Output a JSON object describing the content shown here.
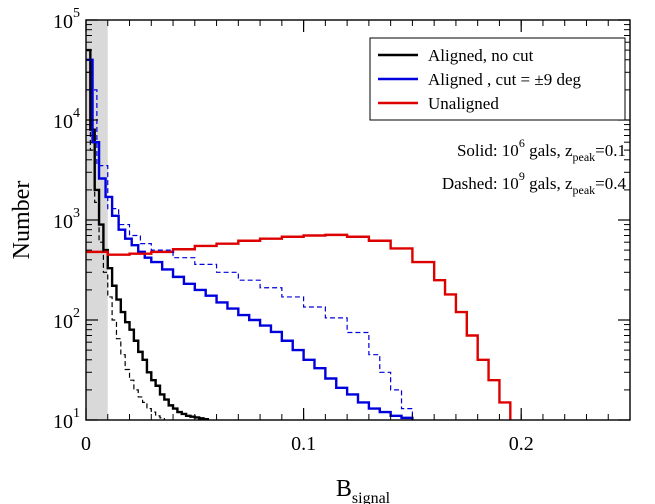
{
  "chart_data": {
    "type": "line",
    "plot_style": "step histogram",
    "xlabel": "B",
    "xlabel_sub": "signal",
    "ylabel": "Number",
    "xlim": [
      0,
      0.25
    ],
    "ylim": [
      10,
      100000
    ],
    "yscale": "log",
    "grid": false,
    "legend_position": "top-right",
    "x_ticks": [
      {
        "value": 0,
        "label": "0"
      },
      {
        "value": 0.1,
        "label": "0.1"
      },
      {
        "value": 0.2,
        "label": "0.2"
      }
    ],
    "y_ticks": [
      {
        "value": 10,
        "base": "10",
        "exp": "1"
      },
      {
        "value": 100,
        "base": "10",
        "exp": "2"
      },
      {
        "value": 1000,
        "base": "10",
        "exp": "3"
      },
      {
        "value": 10000,
        "base": "10",
        "exp": "4"
      },
      {
        "value": 100000,
        "base": "10",
        "exp": "5"
      }
    ],
    "shaded_band": {
      "x": [
        0,
        0.01
      ],
      "color": "#d9d9d9"
    },
    "annotations": [
      {
        "parts": [
          "Solid: 10",
          "6",
          " gals, z",
          "peak",
          "=0.1"
        ]
      },
      {
        "parts": [
          "Dashed: 10",
          "9",
          " gals, z",
          "peak",
          "=0.4"
        ]
      }
    ],
    "series": [
      {
        "name": "Aligned, no cut",
        "color": "#000000",
        "style": "solid",
        "x": [
          0,
          0.002,
          0.004,
          0.006,
          0.008,
          0.01,
          0.012,
          0.014,
          0.016,
          0.018,
          0.02,
          0.022,
          0.024,
          0.026,
          0.028,
          0.03,
          0.032,
          0.034,
          0.036,
          0.038,
          0.04,
          0.042,
          0.044,
          0.046,
          0.048,
          0.05,
          0.052,
          0.054,
          0.056
        ],
        "y": [
          50000,
          8000,
          2000,
          900,
          500,
          330,
          220,
          160,
          120,
          95,
          80,
          62,
          48,
          40,
          30,
          25,
          22,
          18,
          16,
          14,
          13,
          12,
          11.5,
          11,
          10.8,
          10.6,
          10.4,
          10.2,
          10
        ]
      },
      {
        "name": "Aligned , cut = ±9 deg",
        "color": "#0000dd",
        "style": "solid",
        "x": [
          0,
          0.003,
          0.006,
          0.009,
          0.012,
          0.015,
          0.018,
          0.021,
          0.024,
          0.027,
          0.03,
          0.035,
          0.04,
          0.045,
          0.05,
          0.055,
          0.06,
          0.065,
          0.07,
          0.075,
          0.08,
          0.085,
          0.09,
          0.095,
          0.1,
          0.105,
          0.11,
          0.115,
          0.12,
          0.125,
          0.13,
          0.135,
          0.14,
          0.145,
          0.15
        ],
        "y": [
          40000,
          6000,
          2600,
          1700,
          1100,
          800,
          650,
          560,
          480,
          420,
          380,
          320,
          270,
          230,
          200,
          175,
          150,
          130,
          112,
          100,
          88,
          76,
          62,
          50,
          40,
          33,
          26,
          21,
          18,
          15,
          13,
          12,
          11,
          10.5,
          10
        ]
      },
      {
        "name": "Unaligned",
        "color": "#dd0000",
        "style": "solid",
        "x": [
          0,
          0.01,
          0.02,
          0.03,
          0.04,
          0.05,
          0.06,
          0.07,
          0.08,
          0.09,
          0.1,
          0.11,
          0.12,
          0.13,
          0.14,
          0.15,
          0.16,
          0.165,
          0.17,
          0.175,
          0.18,
          0.185,
          0.19,
          0.195
        ],
        "y": [
          480,
          450,
          460,
          480,
          510,
          550,
          580,
          620,
          650,
          680,
          700,
          710,
          680,
          620,
          520,
          380,
          250,
          180,
          120,
          70,
          40,
          25,
          15,
          10
        ]
      },
      {
        "name": "",
        "color": "#000000",
        "style": "dashed",
        "x": [
          0,
          0.002,
          0.004,
          0.006,
          0.008,
          0.01,
          0.012,
          0.014,
          0.016,
          0.018,
          0.02,
          0.022,
          0.024,
          0.026,
          0.028,
          0.03,
          0.032,
          0.034,
          0.036
        ],
        "y": [
          30000,
          5000,
          1500,
          600,
          300,
          170,
          100,
          65,
          45,
          32,
          25,
          20,
          17,
          15,
          13,
          12,
          11,
          10.5,
          10
        ]
      },
      {
        "name": "",
        "color": "#0000dd",
        "style": "dashed",
        "x": [
          0,
          0.005,
          0.01,
          0.015,
          0.02,
          0.025,
          0.03,
          0.04,
          0.05,
          0.06,
          0.07,
          0.08,
          0.09,
          0.1,
          0.11,
          0.12,
          0.13,
          0.135,
          0.14,
          0.145,
          0.15
        ],
        "y": [
          20000,
          3500,
          1300,
          900,
          700,
          580,
          500,
          420,
          360,
          300,
          250,
          210,
          170,
          135,
          105,
          75,
          45,
          30,
          20,
          13,
          10
        ]
      }
    ]
  }
}
